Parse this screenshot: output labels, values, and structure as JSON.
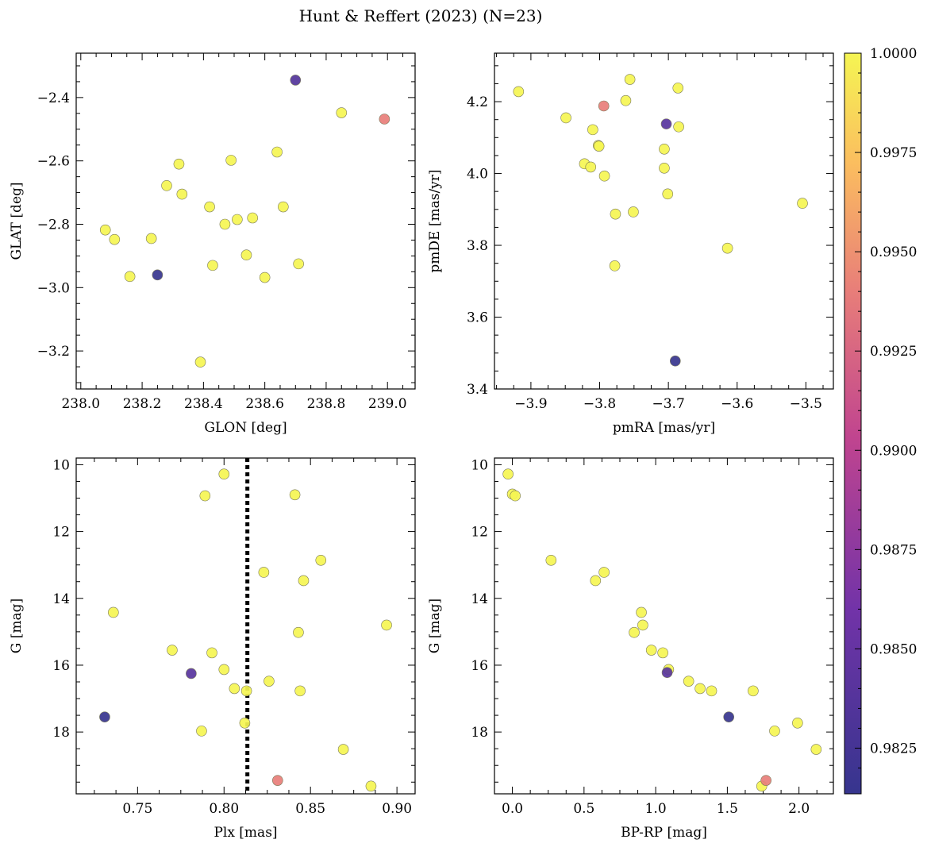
{
  "figure": {
    "title": "Hunt & Reffert (2023) (N=23)"
  },
  "colormap": {
    "name": "plasma",
    "min": 0.98135,
    "max": 1.0,
    "ticks": [
      0.9825,
      0.985,
      0.9875,
      0.99,
      0.9925,
      0.995,
      0.9975,
      1.0
    ],
    "tick_labels": [
      "0.9825",
      "0.9850",
      "0.9875",
      "0.9900",
      "0.9925",
      "0.9950",
      "0.9975",
      "1.0000"
    ]
  },
  "chart_data": [
    {
      "type": "scatter",
      "xlabel": "GLON [deg]",
      "ylabel": "GLAT [deg]",
      "xlim": [
        237.985,
        239.09
      ],
      "ylim": [
        -3.32,
        -2.26
      ],
      "xticks": [
        238.0,
        238.2,
        238.4,
        238.6,
        238.8,
        239.0
      ],
      "xtick_labels": [
        "238.0",
        "238.2",
        "238.4",
        "238.6",
        "238.8",
        "239.0"
      ],
      "yticks": [
        -2.4,
        -2.6,
        -2.8,
        -3.0,
        -3.2
      ],
      "ytick_labels": [
        "−2.4",
        "−2.6",
        "−2.8",
        "−3.0",
        "−3.2"
      ],
      "points": [
        {
          "x": 238.7,
          "y": -2.345,
          "c": 0.9835
        },
        {
          "x": 238.85,
          "y": -2.448,
          "c": 1.0
        },
        {
          "x": 238.99,
          "y": -2.468,
          "c": 0.994
        },
        {
          "x": 238.64,
          "y": -2.572,
          "c": 1.0
        },
        {
          "x": 238.49,
          "y": -2.598,
          "c": 1.0
        },
        {
          "x": 238.32,
          "y": -2.61,
          "c": 1.0
        },
        {
          "x": 238.28,
          "y": -2.678,
          "c": 1.0
        },
        {
          "x": 238.33,
          "y": -2.705,
          "c": 1.0
        },
        {
          "x": 238.42,
          "y": -2.745,
          "c": 1.0
        },
        {
          "x": 238.66,
          "y": -2.745,
          "c": 1.0
        },
        {
          "x": 238.51,
          "y": -2.785,
          "c": 1.0
        },
        {
          "x": 238.56,
          "y": -2.78,
          "c": 1.0
        },
        {
          "x": 238.47,
          "y": -2.8,
          "c": 1.0
        },
        {
          "x": 238.08,
          "y": -2.818,
          "c": 1.0
        },
        {
          "x": 238.11,
          "y": -2.848,
          "c": 1.0
        },
        {
          "x": 238.23,
          "y": -2.845,
          "c": 1.0
        },
        {
          "x": 238.54,
          "y": -2.897,
          "c": 1.0
        },
        {
          "x": 238.43,
          "y": -2.93,
          "c": 1.0
        },
        {
          "x": 238.71,
          "y": -2.925,
          "c": 1.0
        },
        {
          "x": 238.16,
          "y": -2.965,
          "c": 1.0
        },
        {
          "x": 238.25,
          "y": -2.96,
          "c": 0.9814
        },
        {
          "x": 238.6,
          "y": -2.968,
          "c": 1.0
        },
        {
          "x": 238.39,
          "y": -3.235,
          "c": 1.0
        }
      ]
    },
    {
      "type": "scatter",
      "xlabel": "pmRA [mas/yr]",
      "ylabel": "pmDE [mas/yr]",
      "xlim": [
        -3.953,
        -3.46
      ],
      "ylim": [
        3.4,
        4.335
      ],
      "xticks": [
        -3.9,
        -3.8,
        -3.7,
        -3.6,
        -3.5
      ],
      "xtick_labels": [
        "−3.9",
        "−3.8",
        "−3.7",
        "−3.6",
        "−3.5"
      ],
      "yticks": [
        3.4,
        3.6,
        3.8,
        4.0,
        4.2
      ],
      "ytick_labels": [
        "3.4",
        "3.6",
        "3.8",
        "4.0",
        "4.2"
      ],
      "points": [
        {
          "x": -3.756,
          "y": 4.262,
          "c": 1.0
        },
        {
          "x": -3.686,
          "y": 4.238,
          "c": 1.0
        },
        {
          "x": -3.918,
          "y": 4.228,
          "c": 1.0
        },
        {
          "x": -3.762,
          "y": 4.203,
          "c": 1.0
        },
        {
          "x": -3.794,
          "y": 4.188,
          "c": 0.994
        },
        {
          "x": -3.849,
          "y": 4.155,
          "c": 1.0
        },
        {
          "x": -3.703,
          "y": 4.138,
          "c": 0.984
        },
        {
          "x": -3.685,
          "y": 4.13,
          "c": 1.0
        },
        {
          "x": -3.81,
          "y": 4.122,
          "c": 1.0
        },
        {
          "x": -3.802,
          "y": 4.078,
          "c": 1.0
        },
        {
          "x": -3.801,
          "y": 4.076,
          "c": 1.0
        },
        {
          "x": -3.706,
          "y": 4.068,
          "c": 1.0
        },
        {
          "x": -3.822,
          "y": 4.027,
          "c": 1.0
        },
        {
          "x": -3.813,
          "y": 4.018,
          "c": 1.0
        },
        {
          "x": -3.706,
          "y": 4.015,
          "c": 1.0
        },
        {
          "x": -3.793,
          "y": 3.993,
          "c": 1.0
        },
        {
          "x": -3.701,
          "y": 3.943,
          "c": 1.0
        },
        {
          "x": -3.505,
          "y": 3.917,
          "c": 1.0
        },
        {
          "x": -3.751,
          "y": 3.893,
          "c": 1.0
        },
        {
          "x": -3.777,
          "y": 3.887,
          "c": 1.0
        },
        {
          "x": -3.614,
          "y": 3.792,
          "c": 1.0
        },
        {
          "x": -3.778,
          "y": 3.743,
          "c": 1.0
        },
        {
          "x": -3.69,
          "y": 3.478,
          "c": 0.9814
        }
      ]
    },
    {
      "type": "scatter",
      "xlabel": "Plx [mas]",
      "ylabel": "G [mag]",
      "xlim": [
        0.7145,
        0.9105
      ],
      "ylim": [
        19.85,
        9.8
      ],
      "xticks": [
        0.75,
        0.8,
        0.85,
        0.9
      ],
      "xtick_labels": [
        "0.75",
        "0.80",
        "0.85",
        "0.90"
      ],
      "yticks": [
        10,
        12,
        14,
        16,
        18
      ],
      "ytick_labels": [
        "10",
        "12",
        "14",
        "16",
        "18"
      ],
      "vline": {
        "x": 0.8135,
        "style": "dotted"
      },
      "points": [
        {
          "x": 0.8,
          "y": 10.28,
          "c": 1.0
        },
        {
          "x": 0.789,
          "y": 10.93,
          "c": 1.0
        },
        {
          "x": 0.841,
          "y": 10.9,
          "c": 1.0
        },
        {
          "x": 0.856,
          "y": 12.86,
          "c": 1.0
        },
        {
          "x": 0.823,
          "y": 13.22,
          "c": 1.0
        },
        {
          "x": 0.846,
          "y": 13.47,
          "c": 1.0
        },
        {
          "x": 0.736,
          "y": 14.42,
          "c": 1.0
        },
        {
          "x": 0.894,
          "y": 14.8,
          "c": 1.0
        },
        {
          "x": 0.843,
          "y": 15.02,
          "c": 1.0
        },
        {
          "x": 0.77,
          "y": 15.55,
          "c": 1.0
        },
        {
          "x": 0.793,
          "y": 15.63,
          "c": 1.0
        },
        {
          "x": 0.8,
          "y": 16.13,
          "c": 1.0
        },
        {
          "x": 0.781,
          "y": 16.25,
          "c": 0.984
        },
        {
          "x": 0.826,
          "y": 16.48,
          "c": 1.0
        },
        {
          "x": 0.806,
          "y": 16.7,
          "c": 1.0
        },
        {
          "x": 0.813,
          "y": 16.77,
          "c": 1.0
        },
        {
          "x": 0.844,
          "y": 16.77,
          "c": 1.0
        },
        {
          "x": 0.731,
          "y": 17.55,
          "c": 0.9814
        },
        {
          "x": 0.812,
          "y": 17.73,
          "c": 1.0
        },
        {
          "x": 0.787,
          "y": 17.97,
          "c": 1.0
        },
        {
          "x": 0.869,
          "y": 18.52,
          "c": 1.0
        },
        {
          "x": 0.831,
          "y": 19.45,
          "c": 0.994
        },
        {
          "x": 0.885,
          "y": 19.62,
          "c": 1.0
        }
      ]
    },
    {
      "type": "scatter",
      "xlabel": "BP-RP [mag]",
      "ylabel": "G [mag]",
      "xlim": [
        -0.125,
        2.24
      ],
      "ylim": [
        19.85,
        9.8
      ],
      "xticks": [
        0.0,
        0.5,
        1.0,
        1.5,
        2.0
      ],
      "xtick_labels": [
        "0.0",
        "0.5",
        "1.0",
        "1.5",
        "2.0"
      ],
      "yticks": [
        10,
        12,
        14,
        16,
        18
      ],
      "ytick_labels": [
        "10",
        "12",
        "14",
        "16",
        "18"
      ],
      "points": [
        {
          "x": -0.03,
          "y": 10.28,
          "c": 1.0
        },
        {
          "x": 0.0,
          "y": 10.88,
          "c": 1.0
        },
        {
          "x": 0.02,
          "y": 10.93,
          "c": 1.0
        },
        {
          "x": 0.27,
          "y": 12.86,
          "c": 1.0
        },
        {
          "x": 0.64,
          "y": 13.22,
          "c": 1.0
        },
        {
          "x": 0.58,
          "y": 13.47,
          "c": 1.0
        },
        {
          "x": 0.9,
          "y": 14.42,
          "c": 1.0
        },
        {
          "x": 0.91,
          "y": 14.8,
          "c": 1.0
        },
        {
          "x": 0.85,
          "y": 15.02,
          "c": 1.0
        },
        {
          "x": 0.97,
          "y": 15.55,
          "c": 1.0
        },
        {
          "x": 1.05,
          "y": 15.63,
          "c": 1.0
        },
        {
          "x": 1.09,
          "y": 16.13,
          "c": 1.0
        },
        {
          "x": 1.08,
          "y": 16.22,
          "c": 0.984
        },
        {
          "x": 1.23,
          "y": 16.48,
          "c": 1.0
        },
        {
          "x": 1.31,
          "y": 16.7,
          "c": 1.0
        },
        {
          "x": 1.39,
          "y": 16.77,
          "c": 1.0
        },
        {
          "x": 1.68,
          "y": 16.77,
          "c": 1.0
        },
        {
          "x": 1.51,
          "y": 17.55,
          "c": 0.9814
        },
        {
          "x": 1.99,
          "y": 17.73,
          "c": 1.0
        },
        {
          "x": 1.83,
          "y": 17.97,
          "c": 1.0
        },
        {
          "x": 2.12,
          "y": 18.52,
          "c": 1.0
        },
        {
          "x": 1.77,
          "y": 19.45,
          "c": 0.994
        },
        {
          "x": 1.74,
          "y": 19.62,
          "c": 1.0
        }
      ]
    }
  ]
}
